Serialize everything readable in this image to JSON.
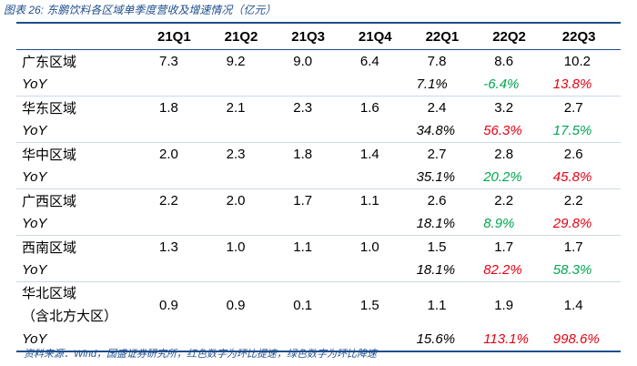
{
  "title": "图表 26: 东鹏饮料各区域单季度营收及增速情况（亿元）",
  "table": {
    "columns": [
      "21Q1",
      "21Q2",
      "21Q3",
      "21Q4",
      "22Q1",
      "22Q2",
      "22Q3"
    ],
    "rows": [
      {
        "label": [
          "广东区域"
        ],
        "values": [
          "7.3",
          "9.2",
          "9.0",
          "6.4",
          "7.8",
          "8.6",
          "10.2"
        ]
      },
      {
        "label": [
          "YoY"
        ],
        "values": [
          null,
          null,
          null,
          null,
          "7.1%",
          "-6.4%",
          "13.8%"
        ],
        "colors": [
          null,
          null,
          null,
          null,
          "#000000",
          "#00a651",
          "#e60012"
        ]
      },
      {
        "label": [
          "华东区域"
        ],
        "values": [
          "1.8",
          "2.1",
          "2.3",
          "1.6",
          "2.4",
          "3.2",
          "2.7"
        ]
      },
      {
        "label": [
          "YoY"
        ],
        "values": [
          null,
          null,
          null,
          null,
          "34.8%",
          "56.3%",
          "17.5%"
        ],
        "colors": [
          null,
          null,
          null,
          null,
          "#000000",
          "#e60012",
          "#00a651"
        ]
      },
      {
        "label": [
          "华中区域"
        ],
        "values": [
          "2.0",
          "2.3",
          "1.8",
          "1.4",
          "2.7",
          "2.8",
          "2.6"
        ]
      },
      {
        "label": [
          "YoY"
        ],
        "values": [
          null,
          null,
          null,
          null,
          "35.1%",
          "20.2%",
          "45.8%"
        ],
        "colors": [
          null,
          null,
          null,
          null,
          "#000000",
          "#00a651",
          "#e60012"
        ]
      },
      {
        "label": [
          "广西区域"
        ],
        "values": [
          "2.2",
          "2.0",
          "1.7",
          "1.1",
          "2.6",
          "2.2",
          "2.2"
        ]
      },
      {
        "label": [
          "YoY"
        ],
        "values": [
          null,
          null,
          null,
          null,
          "18.1%",
          "8.9%",
          "29.8%"
        ],
        "colors": [
          null,
          null,
          null,
          null,
          "#000000",
          "#00a651",
          "#e60012"
        ]
      },
      {
        "label": [
          "西南区域"
        ],
        "values": [
          "1.3",
          "1.0",
          "1.1",
          "1.0",
          "1.5",
          "1.7",
          "1.7"
        ]
      },
      {
        "label": [
          "YoY"
        ],
        "values": [
          null,
          null,
          null,
          null,
          "18.1%",
          "82.2%",
          "58.3%"
        ],
        "colors": [
          null,
          null,
          null,
          null,
          "#000000",
          "#e60012",
          "#00a651"
        ]
      },
      {
        "label": [
          "华北区域",
          "（含北方大区）"
        ],
        "values": [
          "0.9",
          "0.9",
          "0.1",
          "1.5",
          "1.1",
          "1.9",
          "1.4"
        ]
      },
      {
        "label": [
          "YoY"
        ],
        "values": [
          null,
          null,
          null,
          null,
          "15.6%",
          "113.1%",
          "998.6%"
        ],
        "colors": [
          null,
          null,
          null,
          null,
          "#000000",
          "#e60012",
          "#e60012"
        ]
      }
    ]
  },
  "source": "资料来源：Wind，国盛证券研究所，红色数字为环比提速，绿色数字为环比降速"
}
